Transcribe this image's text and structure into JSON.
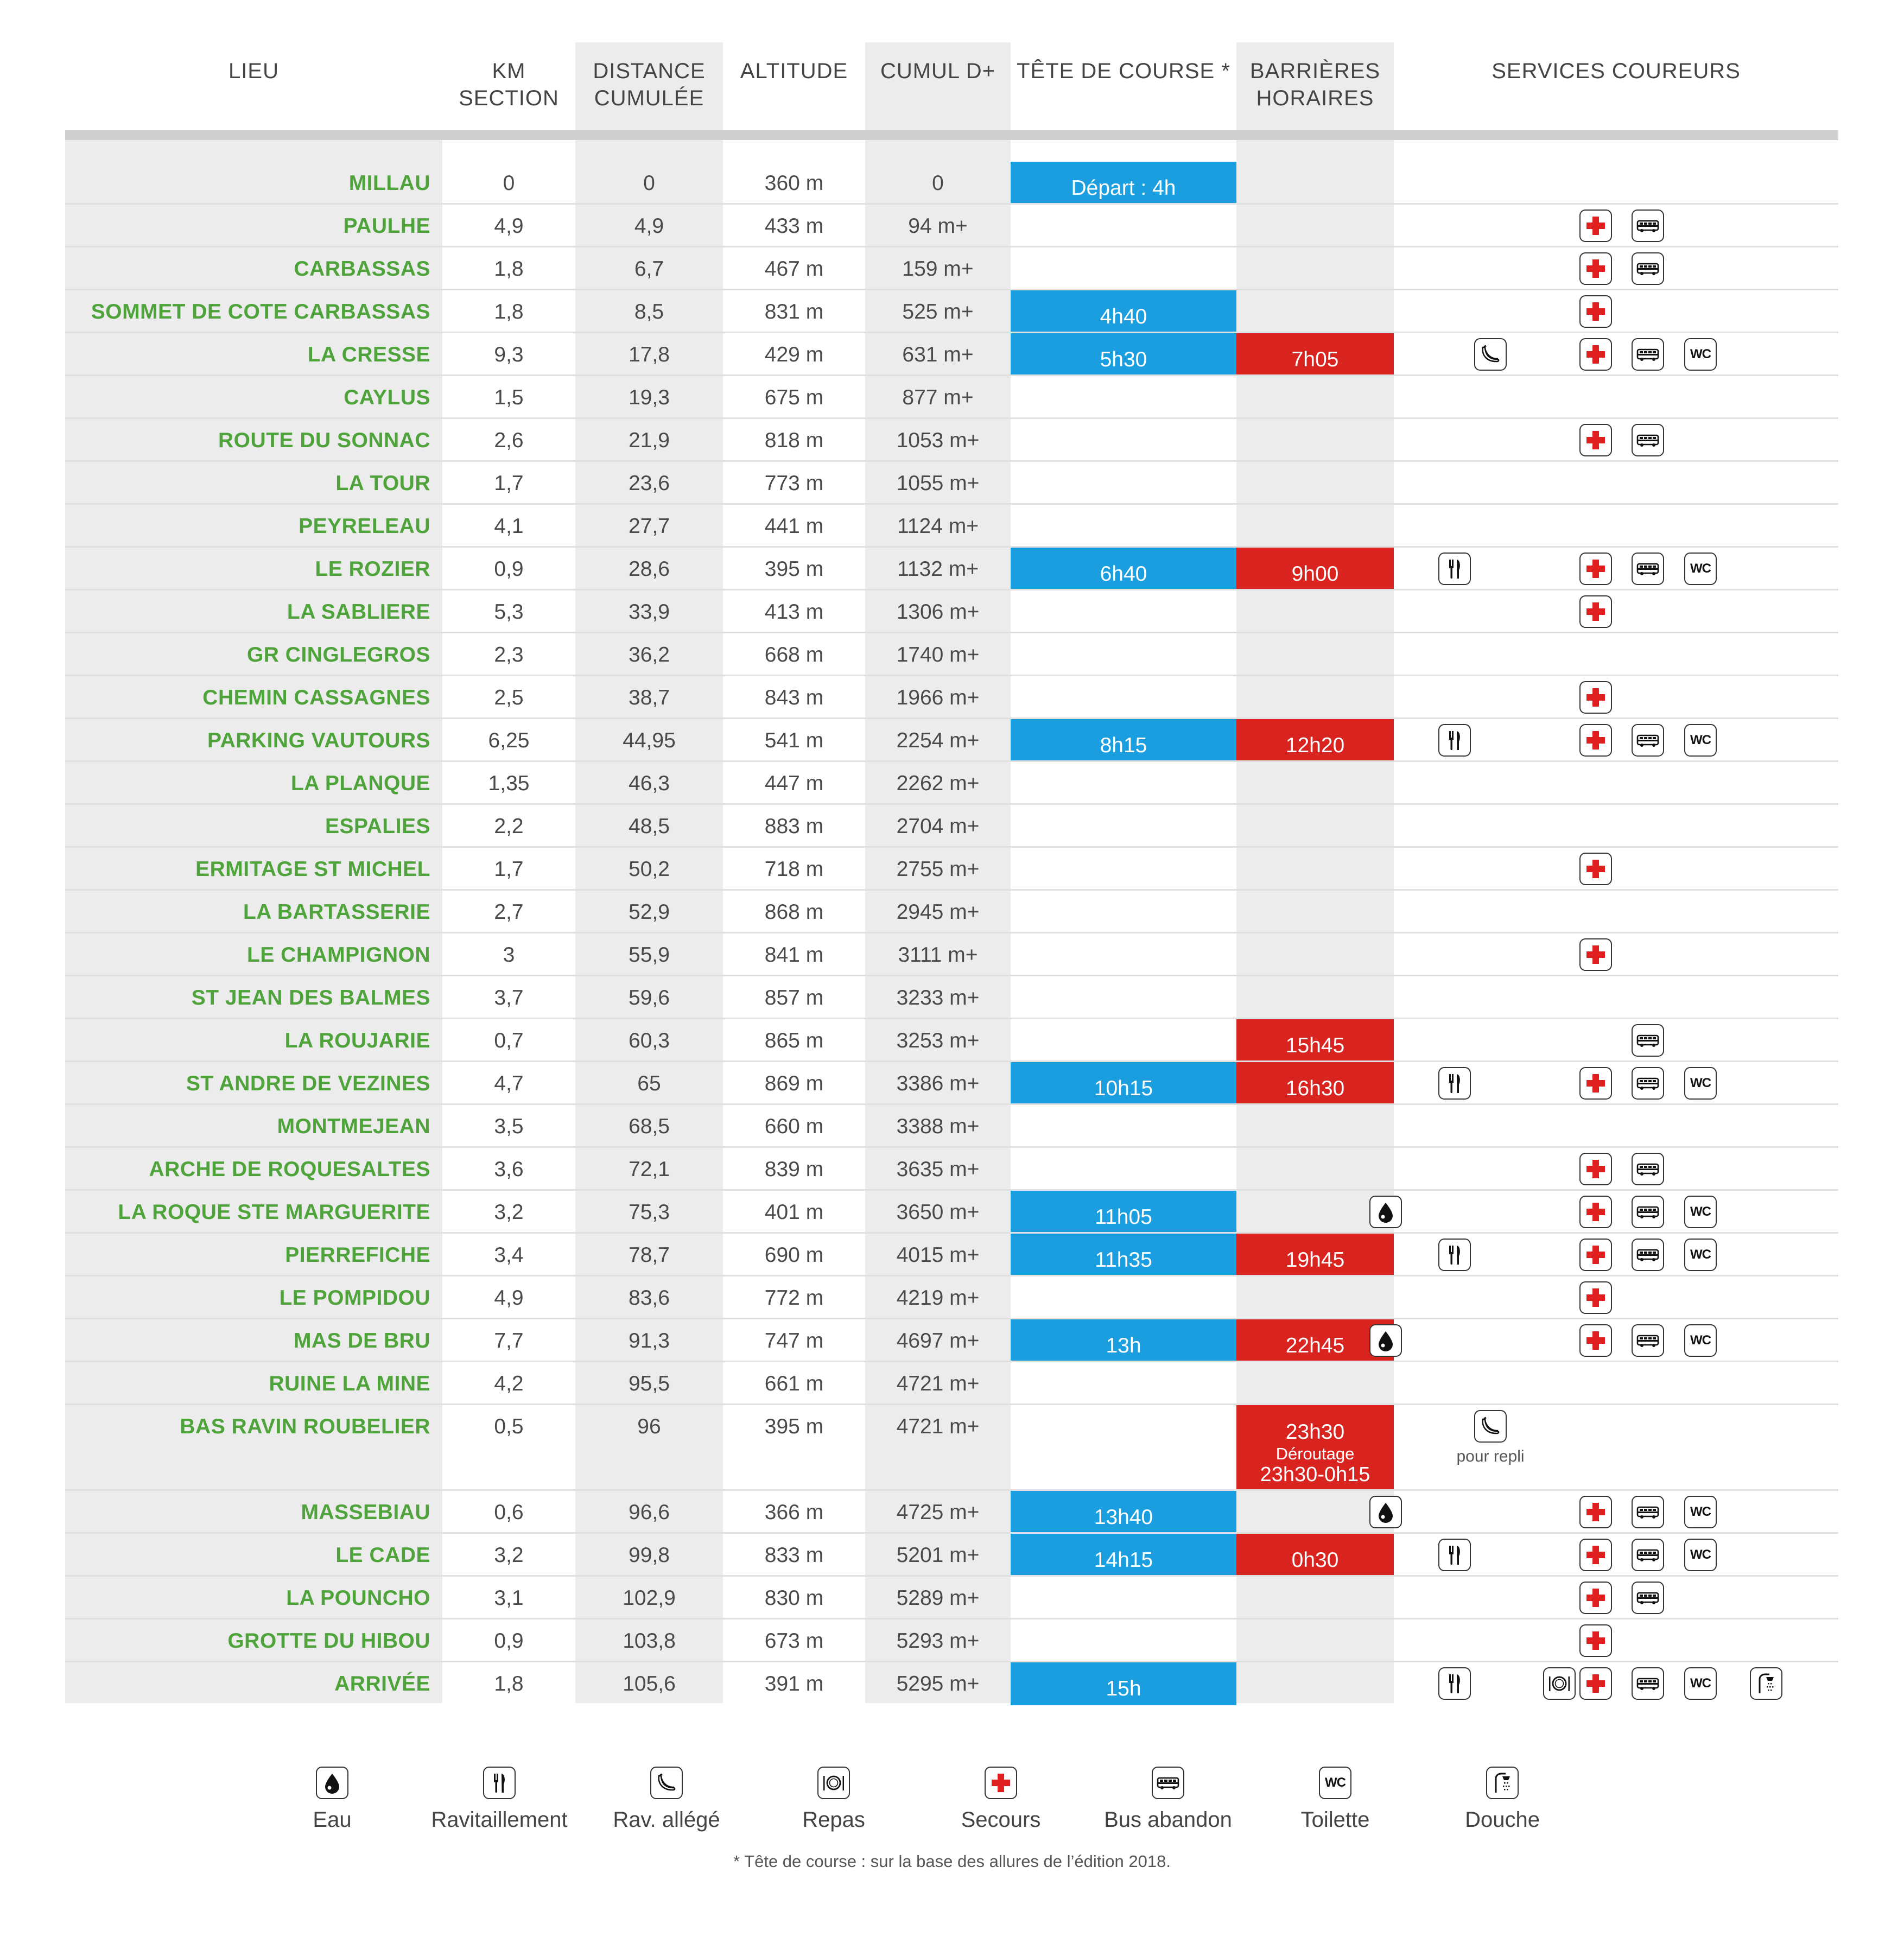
{
  "headers": {
    "lieu": "LIEU",
    "km_section": "KM\nSECTION",
    "distance": "DISTANCE\nCUMULÉE",
    "altitude": "ALTITUDE",
    "cumul": "CUMUL D+",
    "tete": "TÊTE DE COURSE *",
    "barrieres": "BARRIÈRES\nHORAIRES",
    "services": "SERVICES COUREURS"
  },
  "colors": {
    "lieu_green": "#4ea33a",
    "tete_blue": "#1a9ee0",
    "barriere_red": "#d9231f",
    "secours_red": "#e02020",
    "grey_band": "#ececec"
  },
  "rows": [
    {
      "lieu": "MILLAU",
      "km": "0",
      "dist": "0",
      "alt": "360 m",
      "cumul": "0",
      "tete": "Départ : 4h",
      "barr": "",
      "services": []
    },
    {
      "lieu": "PAULHE",
      "km": "4,9",
      "dist": "4,9",
      "alt": "433 m",
      "cumul": "94 m+",
      "tete": "",
      "barr": "",
      "services": [
        "secours",
        "bus"
      ]
    },
    {
      "lieu": "CARBASSAS",
      "km": "1,8",
      "dist": "6,7",
      "alt": "467 m",
      "cumul": "159 m+",
      "tete": "",
      "barr": "",
      "services": [
        "secours",
        "bus"
      ]
    },
    {
      "lieu": "SOMMET DE COTE CARBASSAS",
      "km": "1,8",
      "dist": "8,5",
      "alt": "831 m",
      "cumul": "525 m+",
      "tete": "4h40",
      "barr": "",
      "services": [
        "secours"
      ]
    },
    {
      "lieu": "LA CRESSE",
      "km": "9,3",
      "dist": "17,8",
      "alt": "429 m",
      "cumul": "631 m+",
      "tete": "5h30",
      "barr": "7h05",
      "services": [
        "allege",
        "secours",
        "bus",
        "wc"
      ]
    },
    {
      "lieu": "CAYLUS",
      "km": "1,5",
      "dist": "19,3",
      "alt": "675 m",
      "cumul": "877 m+",
      "tete": "",
      "barr": "",
      "services": []
    },
    {
      "lieu": "ROUTE DU SONNAC",
      "km": "2,6",
      "dist": "21,9",
      "alt": "818 m",
      "cumul": "1053 m+",
      "tete": "",
      "barr": "",
      "services": [
        "secours",
        "bus"
      ]
    },
    {
      "lieu": "LA TOUR",
      "km": "1,7",
      "dist": "23,6",
      "alt": "773 m",
      "cumul": "1055 m+",
      "tete": "",
      "barr": "",
      "services": []
    },
    {
      "lieu": "PEYRELEAU",
      "km": "4,1",
      "dist": "27,7",
      "alt": "441 m",
      "cumul": "1124 m+",
      "tete": "",
      "barr": "",
      "services": []
    },
    {
      "lieu": "LE ROZIER",
      "km": "0,9",
      "dist": "28,6",
      "alt": "395 m",
      "cumul": "1132 m+",
      "tete": "6h40",
      "barr": "9h00",
      "services": [
        "ravito",
        "secours",
        "bus",
        "wc"
      ]
    },
    {
      "lieu": "LA SABLIERE",
      "km": "5,3",
      "dist": "33,9",
      "alt": "413 m",
      "cumul": "1306 m+",
      "tete": "",
      "barr": "",
      "services": [
        "secours"
      ]
    },
    {
      "lieu": "GR CINGLEGROS",
      "km": "2,3",
      "dist": "36,2",
      "alt": "668 m",
      "cumul": "1740 m+",
      "tete": "",
      "barr": "",
      "services": []
    },
    {
      "lieu": "CHEMIN CASSAGNES",
      "km": "2,5",
      "dist": "38,7",
      "alt": "843 m",
      "cumul": "1966 m+",
      "tete": "",
      "barr": "",
      "services": [
        "secours"
      ]
    },
    {
      "lieu": "PARKING VAUTOURS",
      "km": "6,25",
      "dist": "44,95",
      "alt": "541 m",
      "cumul": "2254 m+",
      "tete": "8h15",
      "barr": "12h20",
      "services": [
        "ravito",
        "secours",
        "bus",
        "wc"
      ]
    },
    {
      "lieu": "LA PLANQUE",
      "km": "1,35",
      "dist": "46,3",
      "alt": "447 m",
      "cumul": "2262 m+",
      "tete": "",
      "barr": "",
      "services": []
    },
    {
      "lieu": "ESPALIES",
      "km": "2,2",
      "dist": "48,5",
      "alt": "883 m",
      "cumul": "2704 m+",
      "tete": "",
      "barr": "",
      "services": []
    },
    {
      "lieu": "ERMITAGE ST MICHEL",
      "km": "1,7",
      "dist": "50,2",
      "alt": "718 m",
      "cumul": "2755 m+",
      "tete": "",
      "barr": "",
      "services": [
        "secours"
      ]
    },
    {
      "lieu": "LA BARTASSERIE",
      "km": "2,7",
      "dist": "52,9",
      "alt": "868 m",
      "cumul": "2945 m+",
      "tete": "",
      "barr": "",
      "services": []
    },
    {
      "lieu": "LE CHAMPIGNON",
      "km": "3",
      "dist": "55,9",
      "alt": "841 m",
      "cumul": "3111 m+",
      "tete": "",
      "barr": "",
      "services": [
        "secours"
      ]
    },
    {
      "lieu": "ST JEAN DES BALMES",
      "km": "3,7",
      "dist": "59,6",
      "alt": "857 m",
      "cumul": "3233 m+",
      "tete": "",
      "barr": "",
      "services": []
    },
    {
      "lieu": "LA ROUJARIE",
      "km": "0,7",
      "dist": "60,3",
      "alt": "865 m",
      "cumul": "3253 m+",
      "tete": "",
      "barr": "15h45",
      "services": [
        "bus"
      ]
    },
    {
      "lieu": "ST ANDRE DE VEZINES",
      "km": "4,7",
      "dist": "65",
      "alt": "869 m",
      "cumul": "3386 m+",
      "tete": "10h15",
      "barr": "16h30",
      "services": [
        "ravito",
        "secours",
        "bus",
        "wc"
      ]
    },
    {
      "lieu": "MONTMEJEAN",
      "km": "3,5",
      "dist": "68,5",
      "alt": "660 m",
      "cumul": "3388 m+",
      "tete": "",
      "barr": "",
      "services": []
    },
    {
      "lieu": "ARCHE DE ROQUESALTES",
      "km": "3,6",
      "dist": "72,1",
      "alt": "839 m",
      "cumul": "3635 m+",
      "tete": "",
      "barr": "",
      "services": [
        "secours",
        "bus"
      ]
    },
    {
      "lieu": "LA ROQUE STE MARGUERITE",
      "km": "3,2",
      "dist": "75,3",
      "alt": "401 m",
      "cumul": "3650 m+",
      "tete": "11h05",
      "barr": "",
      "services": [
        "eau",
        "secours",
        "bus",
        "wc"
      ]
    },
    {
      "lieu": "PIERREFICHE",
      "km": "3,4",
      "dist": "78,7",
      "alt": "690 m",
      "cumul": "4015 m+",
      "tete": "11h35",
      "barr": "19h45",
      "services": [
        "ravito",
        "secours",
        "bus",
        "wc"
      ]
    },
    {
      "lieu": "LE POMPIDOU",
      "km": "4,9",
      "dist": "83,6",
      "alt": "772 m",
      "cumul": "4219 m+",
      "tete": "",
      "barr": "",
      "services": [
        "secours"
      ]
    },
    {
      "lieu": "MAS DE BRU",
      "km": "7,7",
      "dist": "91,3",
      "alt": "747 m",
      "cumul": "4697 m+",
      "tete": "13h",
      "barr": "22h45",
      "services": [
        "eau",
        "secours",
        "bus",
        "wc"
      ]
    },
    {
      "lieu": "RUINE LA MINE",
      "km": "4,2",
      "dist": "95,5",
      "alt": "661 m",
      "cumul": "4721 m+",
      "tete": "",
      "barr": "",
      "services": []
    },
    {
      "lieu": "BAS RAVIN ROUBELIER",
      "km": "0,5",
      "dist": "96",
      "alt": "395 m",
      "cumul": "4721 m+",
      "tete": "",
      "barr": "23h30",
      "barr_sub": "Déroutage",
      "barr_sub2": "23h30-0h15",
      "services": [
        "allege"
      ],
      "repli": "pour repli",
      "tall": true
    },
    {
      "lieu": "MASSEBIAU",
      "km": "0,6",
      "dist": "96,6",
      "alt": "366 m",
      "cumul": "4725 m+",
      "tete": "13h40",
      "barr": "",
      "services": [
        "eau",
        "secours",
        "bus",
        "wc"
      ]
    },
    {
      "lieu": "LE CADE",
      "km": "3,2",
      "dist": "99,8",
      "alt": "833 m",
      "cumul": "5201 m+",
      "tete": "14h15",
      "barr": "0h30",
      "services": [
        "ravito",
        "secours",
        "bus",
        "wc"
      ]
    },
    {
      "lieu": "LA POUNCHO",
      "km": "3,1",
      "dist": "102,9",
      "alt": "830 m",
      "cumul": "5289 m+",
      "tete": "",
      "barr": "",
      "services": [
        "secours",
        "bus"
      ]
    },
    {
      "lieu": "GROTTE DU HIBOU",
      "km": "0,9",
      "dist": "103,8",
      "alt": "673 m",
      "cumul": "5293 m+",
      "tete": "",
      "barr": "",
      "services": [
        "secours"
      ]
    },
    {
      "lieu": "ARRIVÉE",
      "km": "1,8",
      "dist": "105,6",
      "alt": "391 m",
      "cumul": "5295 m+",
      "tete": "15h",
      "barr": "",
      "services": [
        "ravito",
        "repas",
        "secours",
        "bus",
        "wc",
        "douche"
      ]
    }
  ],
  "legend": [
    {
      "icon": "eau",
      "label": "Eau"
    },
    {
      "icon": "ravito",
      "label": "Ravitaillement"
    },
    {
      "icon": "allege",
      "label": "Rav. allégé"
    },
    {
      "icon": "repas",
      "label": "Repas"
    },
    {
      "icon": "secours",
      "label": "Secours"
    },
    {
      "icon": "bus",
      "label": "Bus abandon"
    },
    {
      "icon": "wc",
      "label": "Toilette"
    },
    {
      "icon": "douche",
      "label": "Douche"
    }
  ],
  "wc_text": "WC",
  "footnote": "* Tête de course : sur la base des allures de l’édition 2018."
}
